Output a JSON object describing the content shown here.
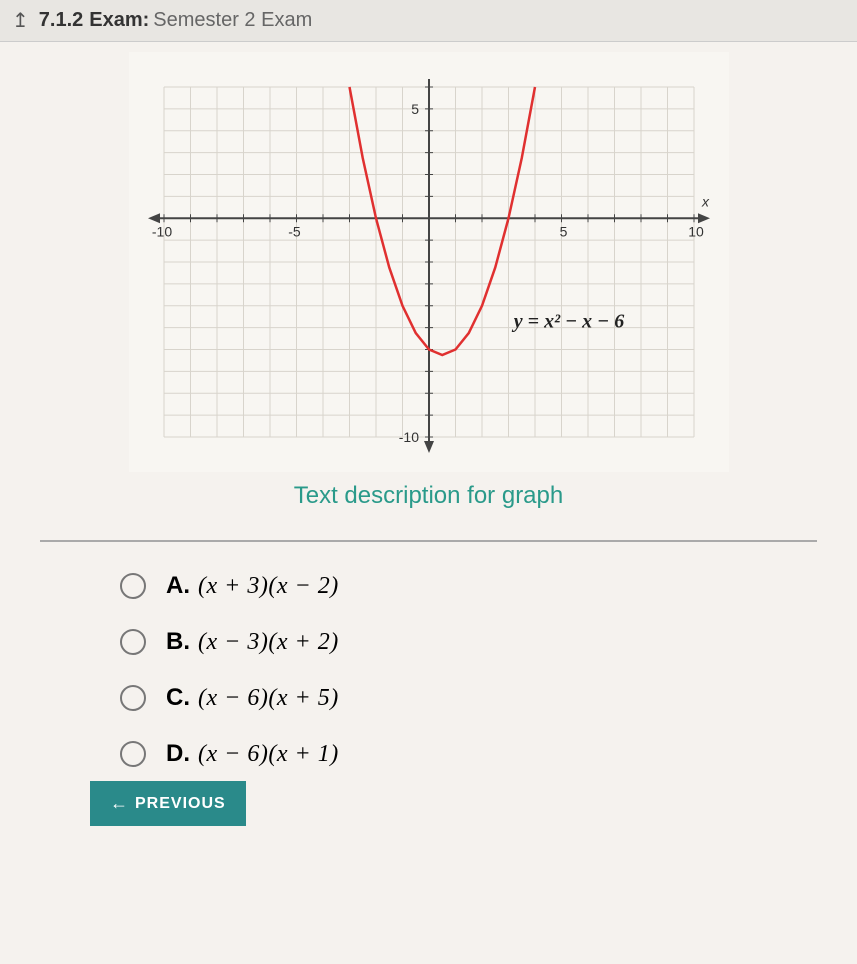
{
  "header": {
    "section_number": "7.1.2",
    "exam_label": "Exam:",
    "exam_title": "Semester 2 Exam"
  },
  "chart": {
    "type": "line",
    "equation_label": "y = x² − x − 6",
    "x_axis_label": "x",
    "xlim": [
      -10,
      10
    ],
    "ylim": [
      -10,
      6
    ],
    "xticks": [
      -10,
      -5,
      5,
      10
    ],
    "yticks": [
      -10,
      5
    ],
    "xtick_labels": [
      "-10",
      "-5",
      "5",
      "10"
    ],
    "ytick_labels": [
      "-10",
      "5"
    ],
    "grid_color": "#d8d4cc",
    "axis_color": "#444444",
    "curve_color": "#e03030",
    "curve_width": 2.5,
    "background_color": "#f8f6f2",
    "curve_points": [
      [
        -3.0,
        6.0
      ],
      [
        -2.5,
        2.75
      ],
      [
        -2.0,
        0.0
      ],
      [
        -1.5,
        -2.25
      ],
      [
        -1.0,
        -4.0
      ],
      [
        -0.5,
        -5.25
      ],
      [
        0.0,
        -6.0
      ],
      [
        0.5,
        -6.25
      ],
      [
        1.0,
        -6.0
      ],
      [
        1.5,
        -5.25
      ],
      [
        2.0,
        -4.0
      ],
      [
        2.5,
        -2.25
      ],
      [
        3.0,
        0.0
      ],
      [
        3.5,
        2.75
      ],
      [
        4.0,
        6.0
      ]
    ]
  },
  "graph_link": "Text description for graph",
  "options": [
    {
      "letter": "A.",
      "text": "(x + 3)(x − 2)"
    },
    {
      "letter": "B.",
      "text": "(x − 3)(x + 2)"
    },
    {
      "letter": "C.",
      "text": "(x − 6)(x + 5)"
    },
    {
      "letter": "D.",
      "text": "(x − 6)(x + 1)"
    }
  ],
  "prev_button": "PREVIOUS"
}
